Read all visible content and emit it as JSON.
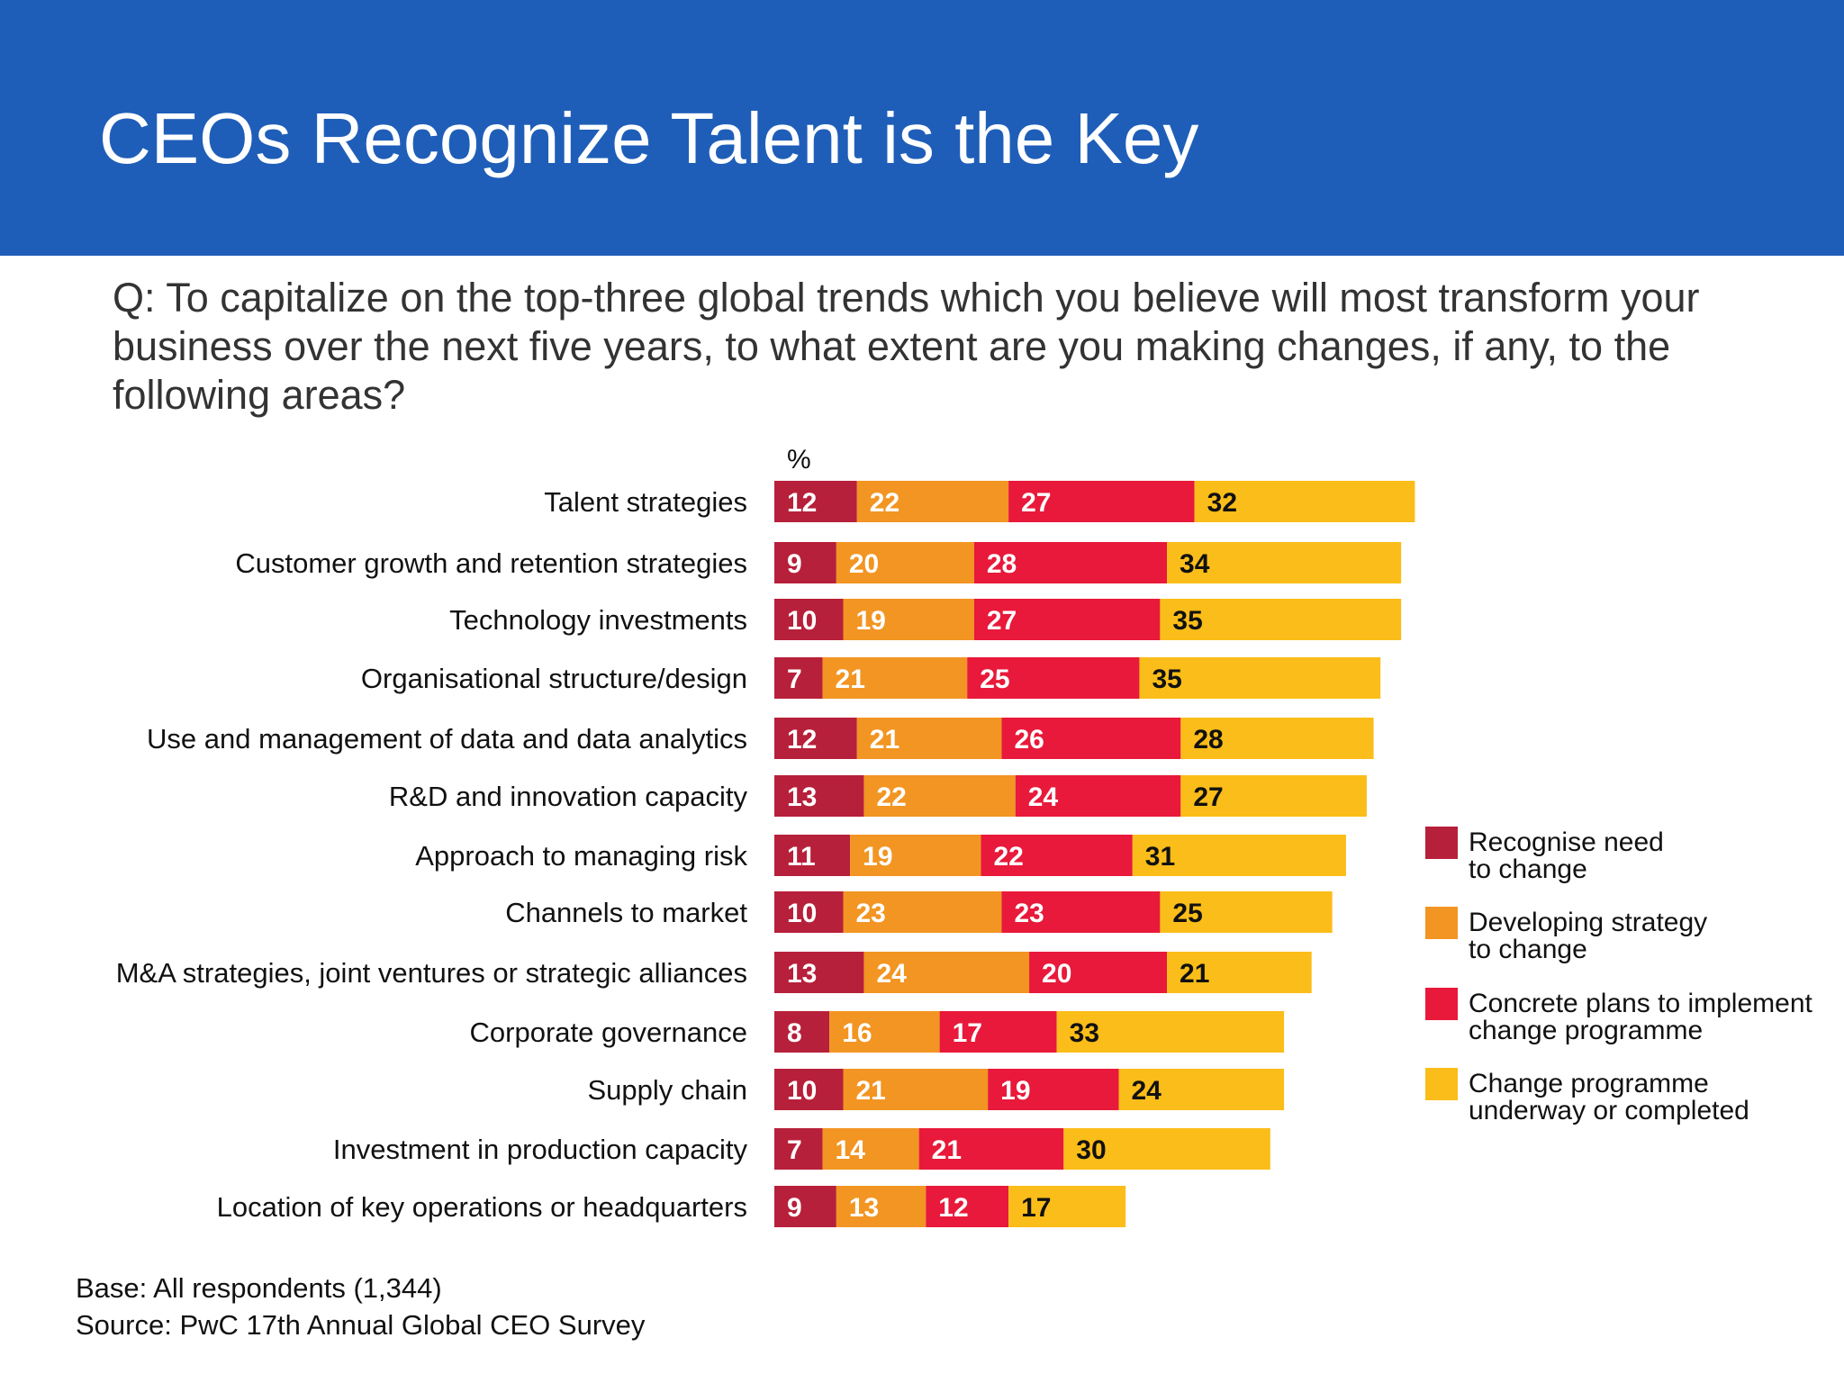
{
  "slide": {
    "title": "CEOs Recognize Talent is the Key",
    "question": "Q: To capitalize on the top-three global trends which you believe will most transform your business over the next five years, to what extent are you making changes, if any, to the following areas?",
    "base_note": "Base: All respondents (1,344)",
    "source_note": "Source: PwC 17th Annual Global CEO Survey"
  },
  "chart_data": {
    "type": "bar",
    "orientation": "horizontal",
    "stacked": true,
    "unit_label": "%",
    "categories": [
      "Talent strategies",
      "Customer growth and retention strategies",
      "Technology investments",
      "Organisational structure/design",
      "Use and management of data and data analytics",
      "R&D and innovation capacity",
      "Approach to managing risk",
      "Channels to market",
      "M&A strategies, joint ventures or strategic alliances",
      "Corporate governance",
      "Supply chain",
      "Investment in production capacity",
      "Location of key operations or headquarters"
    ],
    "series": [
      {
        "name": "Recognise need to change",
        "legend_lines": [
          "Recognise need",
          "to change"
        ],
        "color": "#b7203a",
        "label_color": "#ffffff",
        "values": [
          12,
          9,
          10,
          7,
          12,
          13,
          11,
          10,
          13,
          8,
          10,
          7,
          9
        ]
      },
      {
        "name": "Developing strategy to change",
        "legend_lines": [
          "Developing strategy",
          "to change"
        ],
        "color": "#f29522",
        "label_color": "#ffffff",
        "values": [
          22,
          20,
          19,
          21,
          21,
          22,
          19,
          23,
          24,
          16,
          21,
          14,
          13
        ]
      },
      {
        "name": "Concrete plans to implement change programme",
        "legend_lines": [
          "Concrete plans to implement",
          "change programme"
        ],
        "color": "#e8193a",
        "label_color": "#ffffff",
        "values": [
          27,
          28,
          27,
          25,
          26,
          24,
          22,
          23,
          20,
          17,
          19,
          21,
          12
        ]
      },
      {
        "name": "Change programme underway or completed",
        "legend_lines": [
          "Change programme",
          "underway or completed"
        ],
        "color": "#fbbd19",
        "label_color": "#111111",
        "values": [
          32,
          34,
          35,
          35,
          28,
          27,
          31,
          25,
          21,
          33,
          24,
          30,
          17
        ]
      }
    ],
    "legend_position": "right",
    "grid": false
  }
}
